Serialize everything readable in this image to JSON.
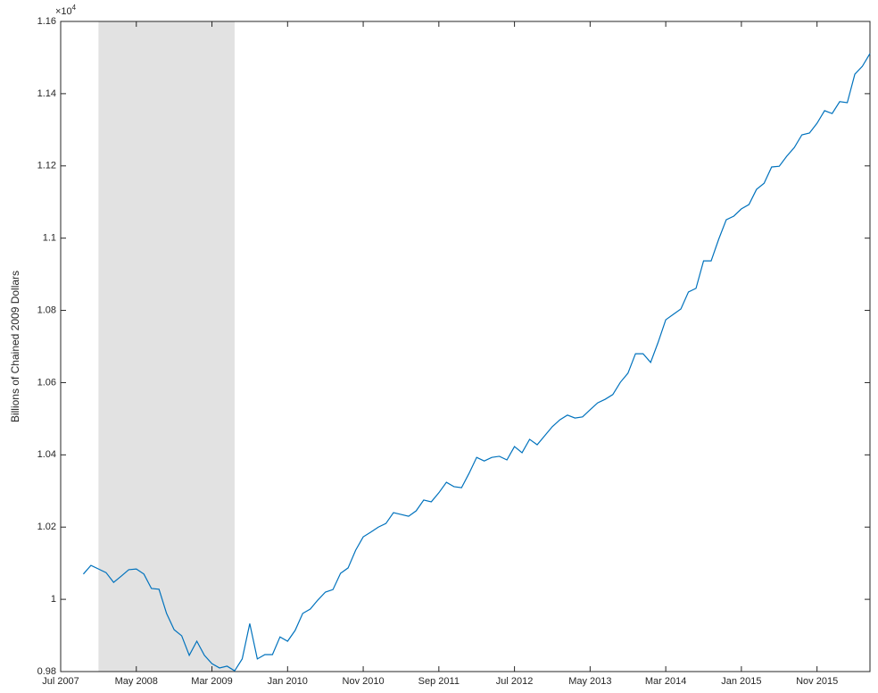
{
  "chart_data": {
    "type": "line",
    "y_label": "Billions of Chained 2009 Dollars",
    "y_multiplier": "×10",
    "y_exponent": 4,
    "x": [
      "2007-10",
      "2007-11",
      "2007-12",
      "2008-01",
      "2008-02",
      "2008-03",
      "2008-04",
      "2008-05",
      "2008-06",
      "2008-07",
      "2008-08",
      "2008-09",
      "2008-10",
      "2008-11",
      "2008-12",
      "2009-01",
      "2009-02",
      "2009-03",
      "2009-04",
      "2009-05",
      "2009-06",
      "2009-07",
      "2009-08",
      "2009-09",
      "2009-10",
      "2009-11",
      "2009-12",
      "2010-01",
      "2010-02",
      "2010-03",
      "2010-04",
      "2010-05",
      "2010-06",
      "2010-07",
      "2010-08",
      "2010-09",
      "2010-10",
      "2010-11",
      "2010-12",
      "2011-01",
      "2011-02",
      "2011-03",
      "2011-04",
      "2011-05",
      "2011-06",
      "2011-07",
      "2011-08",
      "2011-09",
      "2011-10",
      "2011-11",
      "2011-12",
      "2012-01",
      "2012-02",
      "2012-03",
      "2012-04",
      "2012-05",
      "2012-06",
      "2012-07",
      "2012-08",
      "2012-09",
      "2012-10",
      "2012-11",
      "2012-12",
      "2013-01",
      "2013-02",
      "2013-03",
      "2013-04",
      "2013-05",
      "2013-06",
      "2013-07",
      "2013-08",
      "2013-09",
      "2013-10",
      "2013-11",
      "2013-12",
      "2014-01",
      "2014-02",
      "2014-03",
      "2014-04",
      "2014-05",
      "2014-06",
      "2014-07",
      "2014-08",
      "2014-09",
      "2014-10",
      "2014-11",
      "2014-12",
      "2015-01",
      "2015-02",
      "2015-03",
      "2015-04",
      "2015-05",
      "2015-06",
      "2015-07",
      "2015-08",
      "2015-09",
      "2015-10",
      "2015-11",
      "2015-12",
      "2016-01",
      "2016-02",
      "2016-03",
      "2016-04",
      "2016-05",
      "2016-06"
    ],
    "series": [
      {
        "color": "#0072bd",
        "values": [
          1.007,
          1.0094,
          1.0084,
          1.0074,
          1.0047,
          1.0064,
          1.0082,
          1.0084,
          1.007,
          1.003,
          1.0028,
          0.9961,
          0.9916,
          0.9899,
          0.9845,
          0.9884,
          0.9845,
          0.9822,
          0.981,
          0.9815,
          0.9802,
          0.9835,
          0.9933,
          0.9835,
          0.9847,
          0.9847,
          0.9896,
          0.9884,
          0.9914,
          0.9961,
          0.9973,
          0.9998,
          1.002,
          1.0027,
          1.0072,
          1.0087,
          1.0136,
          1.0173,
          1.0186,
          1.02,
          1.021,
          1.024,
          1.0235,
          1.023,
          1.0245,
          1.0275,
          1.027,
          1.0295,
          1.0324,
          1.0312,
          1.0309,
          1.0349,
          1.0393,
          1.0383,
          1.0393,
          1.0396,
          1.0386,
          1.0423,
          1.0406,
          1.0443,
          1.0428,
          1.0453,
          1.0478,
          1.0497,
          1.051,
          1.0502,
          1.0505,
          1.0525,
          1.0544,
          1.0554,
          1.0567,
          1.0601,
          1.0626,
          1.068,
          1.068,
          1.0656,
          1.0712,
          1.0774,
          1.0789,
          1.0804,
          1.0851,
          1.0861,
          1.0937,
          1.0937,
          1.0997,
          1.1051,
          1.1061,
          1.1081,
          1.1093,
          1.1135,
          1.1152,
          1.1197,
          1.1199,
          1.1227,
          1.1251,
          1.1286,
          1.1291,
          1.1318,
          1.1353,
          1.1345,
          1.1378,
          1.1375,
          1.1454,
          1.1476,
          1.1511
        ]
      }
    ],
    "shaded_ranges": [
      [
        "2007-12",
        "2009-06"
      ]
    ],
    "shade_color": "#e2e2e2",
    "xlim": [
      "2007-07",
      "2016-06"
    ],
    "xticks": [
      {
        "value": "2007-07",
        "label": "Jul 2007"
      },
      {
        "value": "2008-05",
        "label": "May 2008"
      },
      {
        "value": "2009-03",
        "label": "Mar 2009"
      },
      {
        "value": "2010-01",
        "label": "Jan 2010"
      },
      {
        "value": "2010-11",
        "label": "Nov 2010"
      },
      {
        "value": "2011-09",
        "label": "Sep 2011"
      },
      {
        "value": "2012-07",
        "label": "Jul 2012"
      },
      {
        "value": "2013-05",
        "label": "May 2013"
      },
      {
        "value": "2014-03",
        "label": "Mar 2014"
      },
      {
        "value": "2015-01",
        "label": "Jan 2015"
      },
      {
        "value": "2015-11",
        "label": "Nov 2015"
      }
    ],
    "ylim": [
      0.98,
      1.16
    ],
    "yticks": [
      0.98,
      1,
      1.02,
      1.04,
      1.06,
      1.08,
      1.1,
      1.12,
      1.14,
      1.16
    ]
  }
}
